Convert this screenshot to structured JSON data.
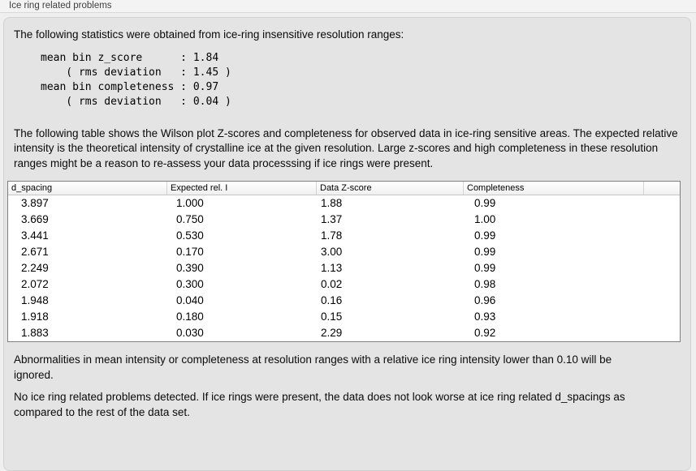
{
  "section": {
    "label": "Ice ring related problems"
  },
  "panel": {
    "intro": "The following statistics were obtained from ice-ring insensitive resolution ranges:",
    "stats": {
      "lines": [
        "mean bin z_score      : 1.84",
        "    ( rms deviation   : 1.45 )",
        "mean bin completeness : 0.97",
        "    ( rms deviation   : 0.04 )"
      ]
    },
    "description": "The following table shows the Wilson plot Z-scores and completeness for observed data in ice-ring sensitive areas. The expected relative intensity is the theoretical intensity of crystalline ice at the given resolution. Large z-scores and high completeness in these resolution ranges might be a reason to re-assess your data processsing if ice rings were present.",
    "table": {
      "columns": [
        "d_spacing",
        "Expected rel. I",
        "Data Z-score",
        "Completeness"
      ],
      "rows": [
        [
          "3.897",
          "1.000",
          "1.88",
          "0.99"
        ],
        [
          "3.669",
          "0.750",
          "1.37",
          "1.00"
        ],
        [
          "3.441",
          "0.530",
          "1.78",
          "0.99"
        ],
        [
          "2.671",
          "0.170",
          "3.00",
          "0.99"
        ],
        [
          "2.249",
          "0.390",
          "1.13",
          "0.99"
        ],
        [
          "2.072",
          "0.300",
          "0.02",
          "0.98"
        ],
        [
          "1.948",
          "0.040",
          "0.16",
          "0.96"
        ],
        [
          "1.918",
          "0.180",
          "0.15",
          "0.93"
        ],
        [
          "1.883",
          "0.030",
          "2.29",
          "0.92"
        ]
      ]
    },
    "ignore_note": "Abnormalities in mean intensity or completeness at resolution ranges with a relative ice ring intensity lower than 0.10 will be ignored.",
    "conclusion": "No ice ring related problems detected. If ice rings were present, the data does not look worse at ice ring related d_spacings as compared to the rest of the data set."
  },
  "colors": {
    "page_bg": "#efefef",
    "panel_bg": "#e4e4e4",
    "table_border": "#7f7f7f",
    "table_header_bg": "#f0f0f0"
  }
}
